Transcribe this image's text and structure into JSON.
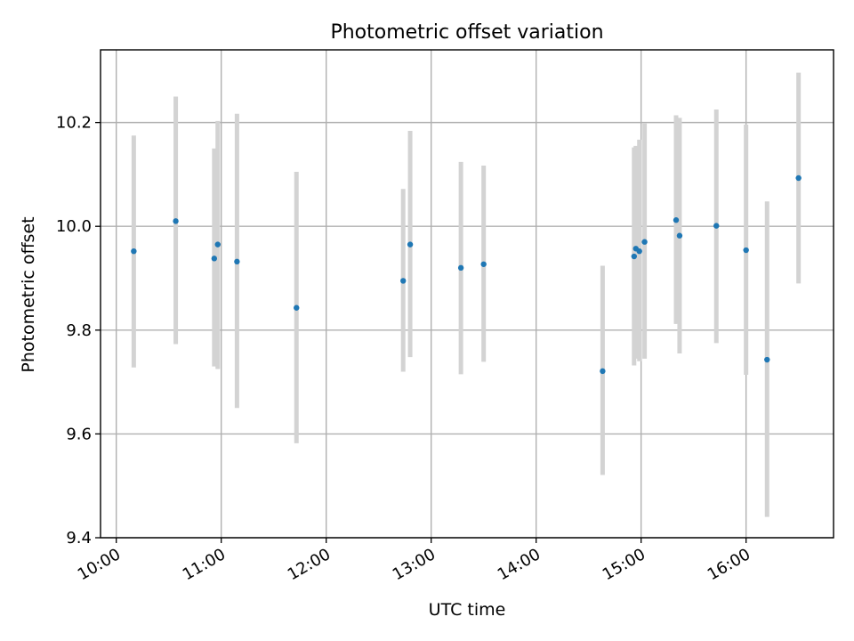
{
  "chart_data": {
    "type": "scatter",
    "title": "Photometric offset variation",
    "xlabel": "UTC time",
    "ylabel": "Photometric offset",
    "x_ticks": [
      "10:00",
      "11:00",
      "12:00",
      "13:00",
      "14:00",
      "15:00",
      "16:00"
    ],
    "y_ticks": [
      "9.4",
      "9.6",
      "9.8",
      "10.0",
      "10.2"
    ],
    "xlim": [
      "09:51",
      "16:50"
    ],
    "ylim": [
      9.4,
      10.34
    ],
    "grid": true,
    "legend": "none",
    "series": [
      {
        "marker_color": "#1f77b4",
        "errorbar_color": "#d3d3d3",
        "points": [
          {
            "x": "10:10",
            "y": 9.952,
            "ylow": 9.728,
            "yhigh": 10.175
          },
          {
            "x": "10:34",
            "y": 10.01,
            "ylow": 9.773,
            "yhigh": 10.25
          },
          {
            "x": "10:56",
            "y": 9.938,
            "ylow": 9.73,
            "yhigh": 10.15
          },
          {
            "x": "10:58",
            "y": 9.965,
            "ylow": 9.725,
            "yhigh": 10.203
          },
          {
            "x": "11:09",
            "y": 9.932,
            "ylow": 9.65,
            "yhigh": 10.217
          },
          {
            "x": "11:43",
            "y": 9.843,
            "ylow": 9.582,
            "yhigh": 10.105
          },
          {
            "x": "12:44",
            "y": 9.895,
            "ylow": 9.72,
            "yhigh": 10.072
          },
          {
            "x": "12:48",
            "y": 9.965,
            "ylow": 9.748,
            "yhigh": 10.184
          },
          {
            "x": "13:17",
            "y": 9.92,
            "ylow": 9.715,
            "yhigh": 10.124
          },
          {
            "x": "13:30",
            "y": 9.927,
            "ylow": 9.739,
            "yhigh": 10.117
          },
          {
            "x": "14:38",
            "y": 9.721,
            "ylow": 9.521,
            "yhigh": 9.924
          },
          {
            "x": "14:56",
            "y": 9.942,
            "ylow": 9.732,
            "yhigh": 10.152
          },
          {
            "x": "14:57",
            "y": 9.957,
            "ylow": 9.745,
            "yhigh": 10.155
          },
          {
            "x": "14:59",
            "y": 9.952,
            "ylow": 9.74,
            "yhigh": 10.167
          },
          {
            "x": "15:02",
            "y": 9.97,
            "ylow": 9.745,
            "yhigh": 10.198
          },
          {
            "x": "15:20",
            "y": 10.012,
            "ylow": 9.812,
            "yhigh": 10.214
          },
          {
            "x": "15:22",
            "y": 9.982,
            "ylow": 9.755,
            "yhigh": 10.209
          },
          {
            "x": "15:43",
            "y": 10.001,
            "ylow": 9.775,
            "yhigh": 10.225
          },
          {
            "x": "16:00",
            "y": 9.954,
            "ylow": 9.714,
            "yhigh": 10.196
          },
          {
            "x": "16:12",
            "y": 9.743,
            "ylow": 9.44,
            "yhigh": 10.048
          },
          {
            "x": "16:30",
            "y": 10.093,
            "ylow": 9.89,
            "yhigh": 10.296
          }
        ]
      }
    ]
  }
}
